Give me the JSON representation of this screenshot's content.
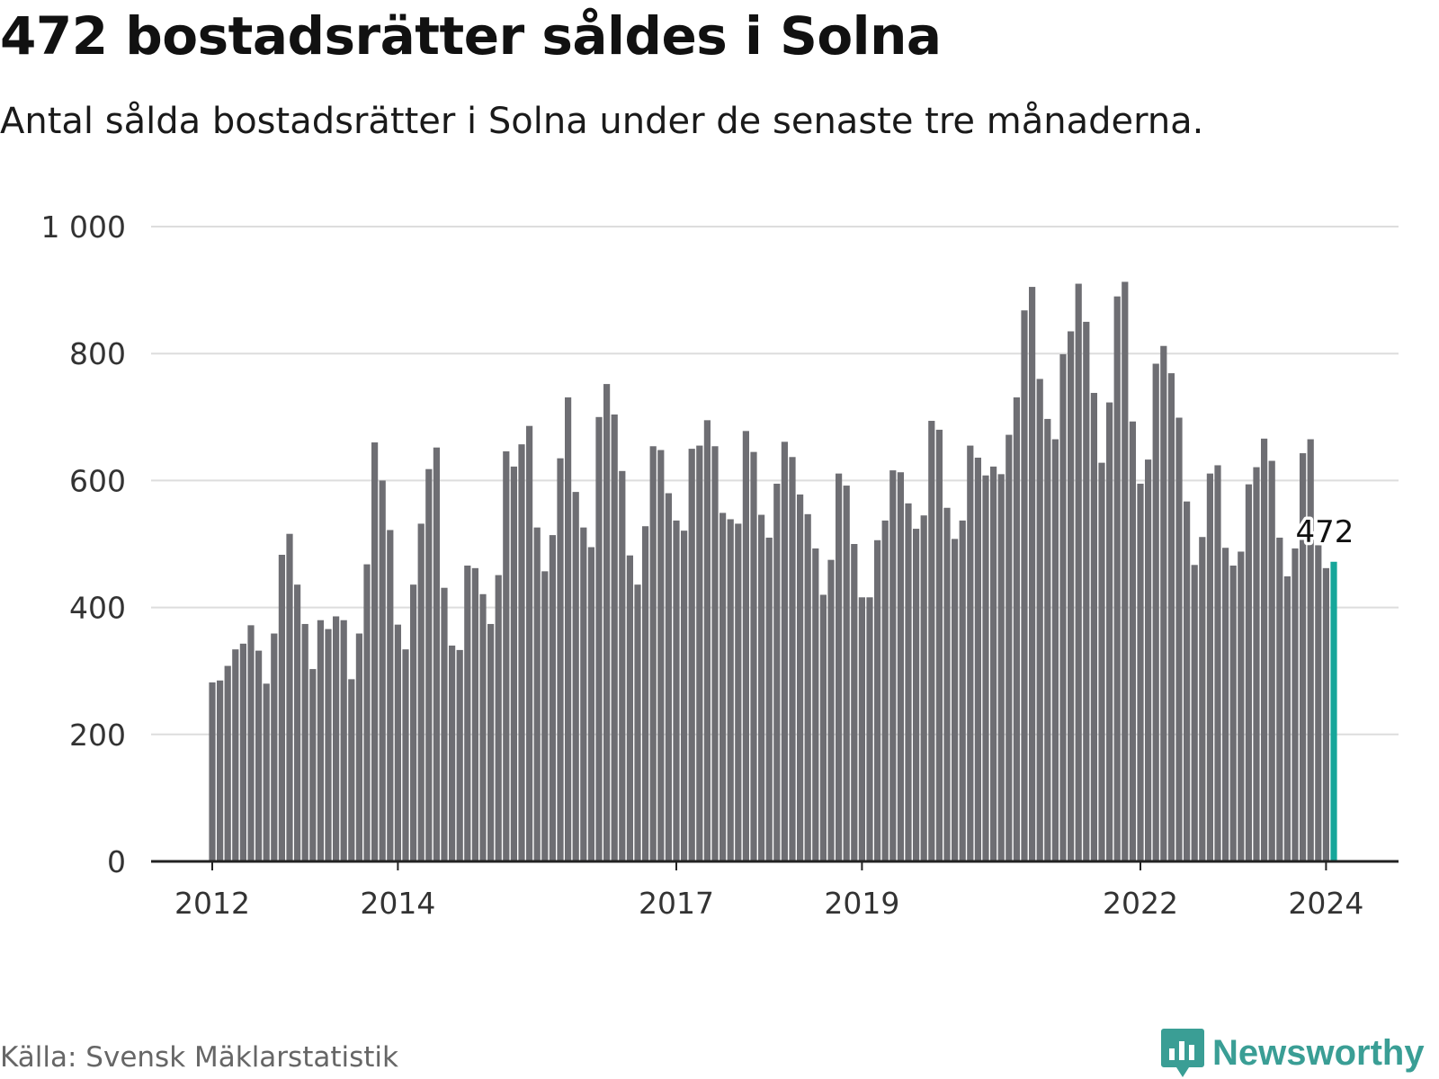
{
  "title": "472 bostadsrätter såldes i Solna",
  "subtitle": "Antal sålda bostadsrätter i Solna under de senaste tre månaderna.",
  "source": "Källa: Svensk Mäklarstatistik",
  "brand": {
    "name": "Newsworthy",
    "icon": "newsworthy-logo-icon",
    "color": "#3a9e95"
  },
  "colors": {
    "bar": "#6e6e73",
    "highlight": "#16a69a",
    "grid": "#dddddd",
    "axis": "#222222"
  },
  "chart_data": {
    "type": "bar",
    "title": "472 bostadsrätter såldes i Solna",
    "xlabel": "",
    "ylabel": "",
    "ylim": [
      0,
      1000
    ],
    "yticks": [
      0,
      200,
      400,
      600,
      800,
      1000
    ],
    "ytick_labels": [
      "0",
      "200",
      "400",
      "600",
      "800",
      "1 000"
    ],
    "xtick_labels": [
      {
        "label": "2012",
        "index": 0
      },
      {
        "label": "2014",
        "index": 24
      },
      {
        "label": "2017",
        "index": 60
      },
      {
        "label": "2019",
        "index": 84
      },
      {
        "label": "2022",
        "index": 120
      },
      {
        "label": "2024",
        "index": 144
      }
    ],
    "period": "monthly, rolling three months, 2012-01 to 2024-01",
    "values": [
      282,
      285,
      308,
      334,
      343,
      372,
      332,
      280,
      359,
      483,
      516,
      436,
      374,
      303,
      380,
      366,
      386,
      380,
      287,
      359,
      468,
      660,
      600,
      522,
      373,
      334,
      436,
      532,
      618,
      652,
      431,
      340,
      333,
      466,
      462,
      421,
      374,
      451,
      646,
      622,
      657,
      686,
      526,
      457,
      514,
      635,
      731,
      582,
      526,
      495,
      700,
      752,
      704,
      615,
      482,
      436,
      528,
      654,
      648,
      580,
      537,
      521,
      650,
      655,
      695,
      654,
      549,
      539,
      532,
      678,
      645,
      546,
      510,
      595,
      661,
      637,
      578,
      547,
      493,
      420,
      475,
      611,
      592,
      500,
      416,
      416,
      506,
      537,
      616,
      613,
      564,
      524,
      545,
      694,
      680,
      557,
      508,
      537,
      655,
      636,
      608,
      622,
      610,
      672,
      731,
      868,
      905,
      760,
      697,
      665,
      799,
      835,
      910,
      850,
      738,
      628,
      723,
      890,
      913,
      693,
      595,
      633,
      784,
      812,
      769,
      699,
      567,
      467,
      511,
      611,
      624,
      494,
      466,
      488,
      594,
      621,
      666,
      631,
      510,
      449,
      493,
      643,
      665,
      498,
      462,
      472
    ],
    "highlight_index": 145,
    "annotation": "472"
  }
}
